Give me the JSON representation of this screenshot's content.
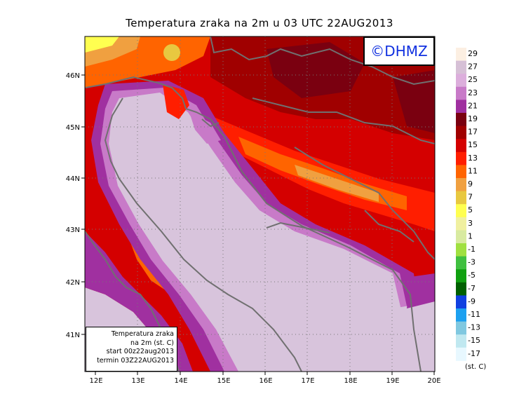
{
  "title": "Temperatura zraka na 2m u 03 UTC 22AUG2013",
  "copyright": "©DHMZ",
  "info_box": {
    "line1": "Temperatura zraka",
    "line2": "na 2m (st. C)",
    "line3": "start 00z22aug2013",
    "line4": "termin 03Z22AUG2013"
  },
  "map": {
    "lon_range": [
      11.8,
      20.0
    ],
    "lat_range": [
      40.2,
      46.7
    ],
    "lon_ticks": [
      "12E",
      "13E",
      "14E",
      "15E",
      "16E",
      "17E",
      "18E",
      "19E",
      "20E"
    ],
    "lat_ticks": [
      "46N",
      "45N",
      "44N",
      "43N",
      "42N",
      "41N"
    ],
    "gridlines": "dotted"
  },
  "legend": {
    "unit": "(st. C)",
    "labels": [
      "29",
      "27",
      "25",
      "23",
      "21",
      "19",
      "17",
      "15",
      "13",
      "11",
      "9",
      "7",
      "5",
      "3",
      "1",
      "-1",
      "-3",
      "-5",
      "-7",
      "-9",
      "-11",
      "-13",
      "-15",
      "-17"
    ],
    "colors": [
      "#fcefe2",
      "#d6c0d6",
      "#dcaedc",
      "#c87ac8",
      "#a030a0",
      "#7a0010",
      "#a00000",
      "#d40000",
      "#ff1e00",
      "#ff6400",
      "#f0a040",
      "#e8c840",
      "#ffff50",
      "#f0f0a0",
      "#d8eaa0",
      "#a0e040",
      "#40c040",
      "#10a010",
      "#006000",
      "#1040e0",
      "#1ca0f0",
      "#80c8e0",
      "#c0e8f0",
      "#e8f8ff"
    ],
    "swatch_order": "top-to-bottom"
  },
  "colors": {
    "sea": "#d8c4dc",
    "copyright_text": "#1030e0",
    "border_lines": "#707070"
  }
}
